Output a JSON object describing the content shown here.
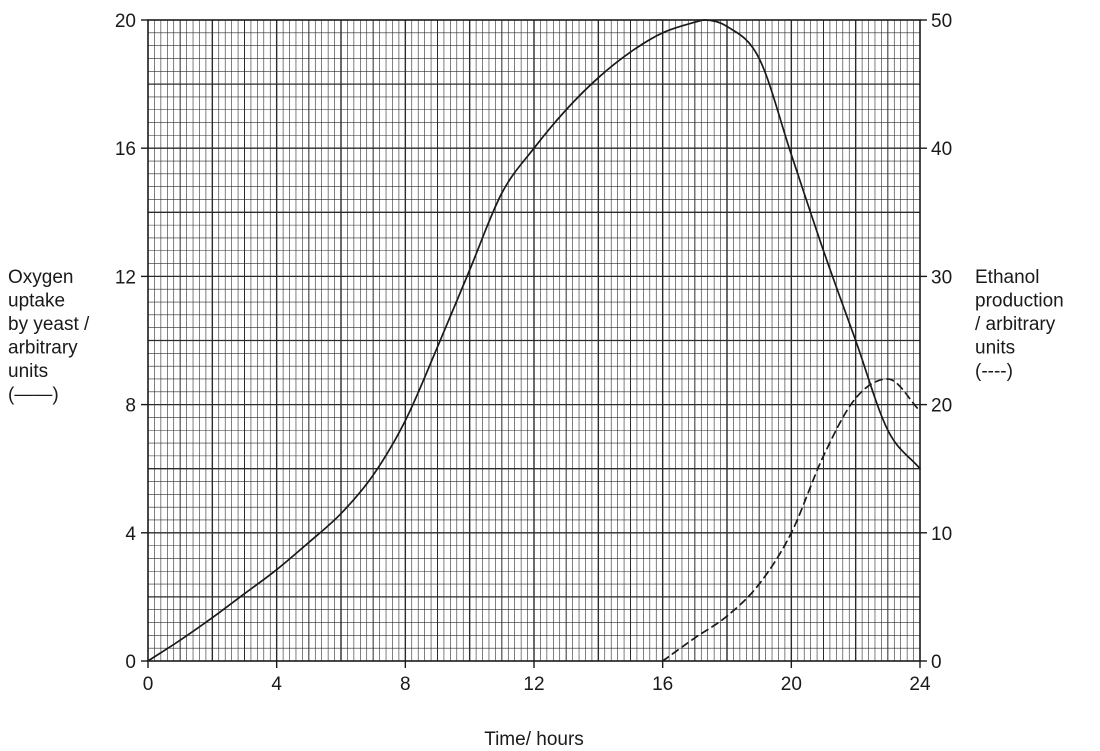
{
  "chart_data": {
    "type": "line",
    "x_axis": {
      "label": "Time/ hours",
      "range": [
        0,
        24
      ],
      "ticks": [
        0,
        4,
        8,
        12,
        16,
        20,
        24
      ],
      "tick_labels": [
        "0",
        "4",
        "8",
        "12",
        "16",
        "20",
        "24"
      ]
    },
    "y_axis_left": {
      "label_lines": [
        "Oxygen",
        "uptake",
        "by yeast /",
        "arbitrary",
        "units",
        "(——)"
      ],
      "range": [
        0,
        20
      ],
      "ticks": [
        0,
        4,
        8,
        12,
        16,
        20
      ],
      "tick_labels": [
        "0",
        "4",
        "8",
        "12",
        "16",
        "20"
      ]
    },
    "y_axis_right": {
      "label_lines": [
        "Ethanol",
        "production",
        "/ arbitrary",
        "units",
        "(----)"
      ],
      "range": [
        0,
        50
      ],
      "ticks": [
        0,
        10,
        20,
        30,
        40,
        50
      ],
      "tick_labels": [
        "0",
        "10",
        "20",
        "30",
        "40",
        "50"
      ]
    },
    "grid": true,
    "series": [
      {
        "axis": "left",
        "line_style": "solid",
        "x": [
          0,
          1,
          2,
          3,
          4,
          5,
          6,
          7,
          8,
          9,
          10,
          11,
          12,
          13,
          14,
          15,
          16,
          17,
          17.3,
          18,
          19,
          20,
          21,
          22,
          23,
          24
        ],
        "y": [
          0,
          0.65,
          1.35,
          2.1,
          2.85,
          3.7,
          4.6,
          5.8,
          7.5,
          9.8,
          12.2,
          14.6,
          16.0,
          17.2,
          18.2,
          19.0,
          19.6,
          19.93,
          20.0,
          19.8,
          18.8,
          15.8,
          12.8,
          10.0,
          7.2,
          6.0
        ]
      },
      {
        "axis": "right",
        "line_style": "dashed",
        "x": [
          16,
          17,
          18,
          19,
          20,
          21,
          22,
          23,
          24
        ],
        "y": [
          0,
          1.8,
          3.5,
          6.0,
          10.0,
          16.0,
          20.5,
          22.0,
          19.5
        ]
      }
    ],
    "colors": {
      "background": "#ffffff",
      "grid": "#2b2b2b",
      "curve": "#1a1a1a"
    }
  }
}
